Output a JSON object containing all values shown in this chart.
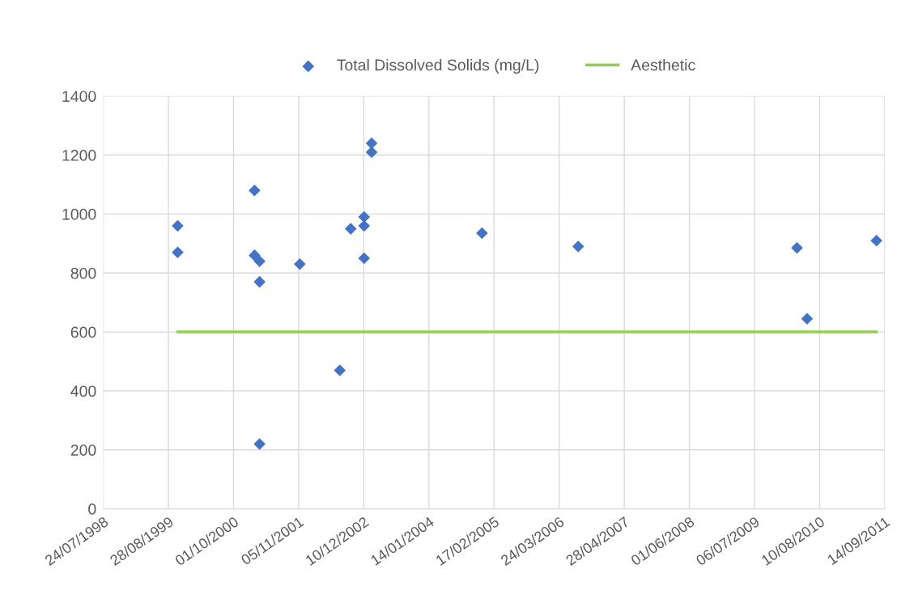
{
  "chart_data": {
    "type": "scatter",
    "legend": "top",
    "grid": true,
    "marker": "diamond",
    "xlim": [
      "1998-07-24",
      "2011-09-14"
    ],
    "xticks": [
      {
        "value": "1998-07-24",
        "label": "24/07/1998"
      },
      {
        "value": "1999-08-28",
        "label": "28/08/1999"
      },
      {
        "value": "2000-10-01",
        "label": "01/10/2000"
      },
      {
        "value": "2001-11-05",
        "label": "05/11/2001"
      },
      {
        "value": "2002-12-10",
        "label": "10/12/2002"
      },
      {
        "value": "2004-01-14",
        "label": "14/01/2004"
      },
      {
        "value": "2005-02-17",
        "label": "17/02/2005"
      },
      {
        "value": "2006-03-24",
        "label": "24/03/2006"
      },
      {
        "value": "2007-04-28",
        "label": "28/04/2007"
      },
      {
        "value": "2008-06-01",
        "label": "01/06/2008"
      },
      {
        "value": "2009-07-06",
        "label": "06/07/2009"
      },
      {
        "value": "2010-08-10",
        "label": "10/08/2010"
      },
      {
        "value": "2011-09-14",
        "label": "14/09/2011"
      }
    ],
    "ylim": [
      0,
      1400
    ],
    "yticks": [
      0,
      200,
      400,
      600,
      800,
      1000,
      1200,
      1400
    ],
    "series": [
      {
        "name": "Total Dissolved Solids (mg/L)",
        "color": "#4472c4",
        "x": [
          "1999-10-24",
          "1999-10-24",
          "2001-02-07",
          "2001-02-07",
          "2001-03-10",
          "2001-03-10",
          "2001-03-10",
          "2001-11-12",
          "2002-07-16",
          "2002-09-21",
          "2002-12-12",
          "2002-12-12",
          "2002-12-12",
          "2003-01-27",
          "2003-01-27",
          "2004-12-05",
          "2006-07-19",
          "2010-03-24",
          "2010-05-25",
          "2011-07-25"
        ],
        "values": [
          960,
          870,
          1080,
          860,
          840,
          770,
          220,
          830,
          470,
          950,
          990,
          960,
          850,
          1240,
          1210,
          935,
          890,
          885,
          645,
          910
        ]
      },
      {
        "name": "Aesthetic",
        "type": "line",
        "color": "#92d050",
        "marker": "none",
        "x": [
          "1999-10-24",
          "2011-07-25"
        ],
        "values": [
          600,
          600
        ]
      }
    ]
  }
}
